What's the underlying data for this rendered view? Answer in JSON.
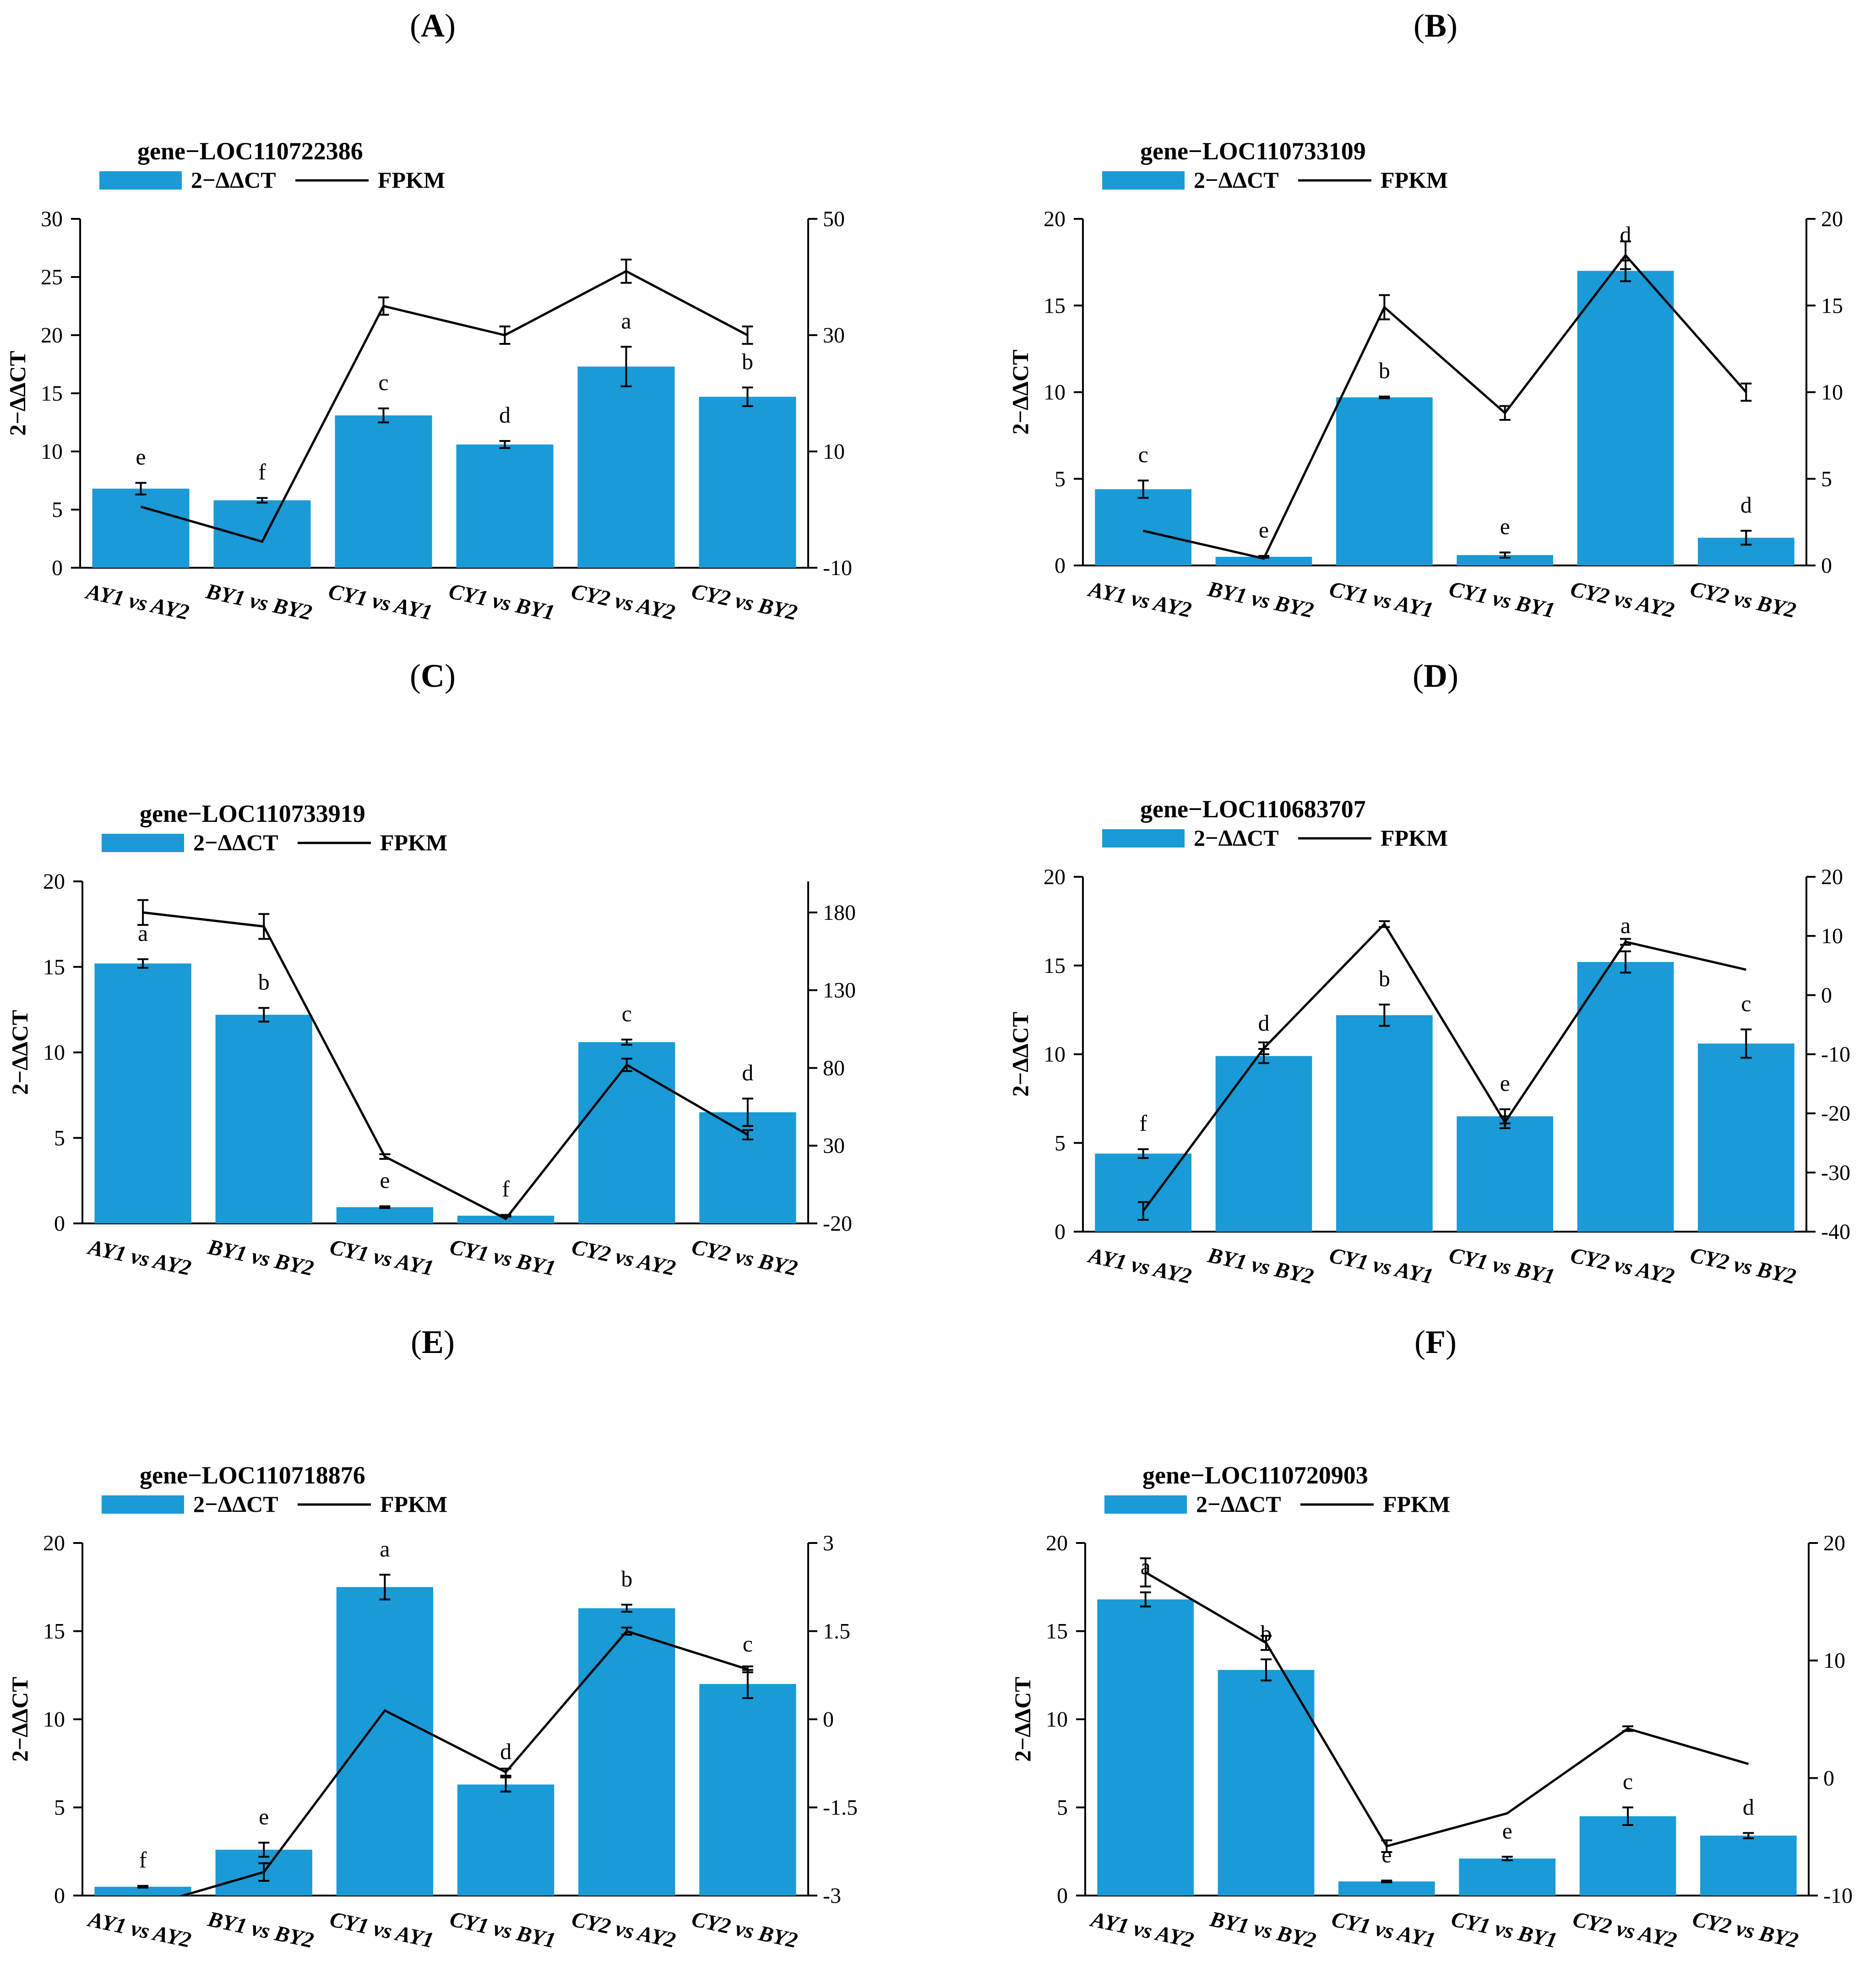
{
  "chart_data": [
    {
      "panel": "A",
      "type": "bar",
      "title": "gene−LOC110722386",
      "legend": [
        "2−ΔΔCT",
        "FPKM"
      ],
      "ylabel": "2−ΔΔCT",
      "categories": [
        "AY1 vs AY2",
        "BY1 vs BY2",
        "CY1 vs AY1",
        "CY1 vs BY1",
        "CY2 vs AY2",
        "CY2 vs BY2"
      ],
      "ylim": [
        0,
        30
      ],
      "yticks": [
        0,
        5,
        10,
        15,
        20,
        25,
        30
      ],
      "y2lim": [
        -10,
        50
      ],
      "y2ticks": [
        -10,
        10,
        30,
        50
      ],
      "series": [
        {
          "name": "2−ΔΔCT",
          "type": "bar",
          "values": [
            6.8,
            5.8,
            13.1,
            10.6,
            17.3,
            14.7
          ],
          "errors": [
            0.5,
            0.2,
            0.6,
            0.3,
            1.7,
            0.8
          ],
          "letters": [
            "e",
            "f",
            "c",
            "d",
            "a",
            "b"
          ]
        },
        {
          "name": "FPKM",
          "type": "line",
          "values": [
            0.5,
            -5.5,
            35,
            30,
            41,
            30
          ],
          "errors": [
            0,
            0,
            1.5,
            1.5,
            2,
            1.5
          ]
        }
      ]
    },
    {
      "panel": "B",
      "type": "bar",
      "title": "gene−LOC110733109",
      "legend": [
        "2−ΔΔCT",
        "FPKM"
      ],
      "ylabel": "2−ΔΔCT",
      "categories": [
        "AY1 vs AY2",
        "BY1 vs BY2",
        "CY1 vs AY1",
        "CY1 vs BY1",
        "CY2 vs AY2",
        "CY2 vs BY2"
      ],
      "ylim": [
        0,
        20
      ],
      "yticks": [
        0,
        5,
        10,
        15,
        20
      ],
      "y2lim": [
        0,
        20
      ],
      "y2ticks": [
        0,
        5,
        10,
        15,
        20
      ],
      "series": [
        {
          "name": "2−ΔΔCT",
          "type": "bar",
          "values": [
            4.4,
            0.5,
            9.7,
            0.6,
            17,
            1.6
          ],
          "errors": [
            0.5,
            0.05,
            0.05,
            0.15,
            0.6,
            0.4
          ],
          "letters": [
            "c",
            "e",
            "b",
            "e",
            "d",
            "d"
          ]
        },
        {
          "name": "FPKM",
          "type": "line",
          "values": [
            2,
            0.4,
            14.9,
            8.8,
            17.9,
            10
          ],
          "errors": [
            0,
            0,
            0.7,
            0.4,
            0.8,
            0.5
          ]
        }
      ]
    },
    {
      "panel": "C",
      "type": "bar",
      "title": "gene−LOC110733919",
      "legend": [
        "2−ΔΔCT",
        "FPKM"
      ],
      "ylabel": "2−ΔΔCT",
      "categories": [
        "AY1 vs AY2",
        "BY1 vs BY2",
        "CY1 vs AY1",
        "CY1 vs BY1",
        "CY2 vs AY2",
        "CY2 vs BY2"
      ],
      "ylim": [
        0,
        20
      ],
      "yticks": [
        0,
        5,
        10,
        15,
        20
      ],
      "y2lim": [
        -20,
        200
      ],
      "y2ticks": [
        -20,
        30,
        80,
        130,
        180
      ],
      "series": [
        {
          "name": "2−ΔΔCT",
          "type": "bar",
          "values": [
            15.2,
            12.2,
            0.95,
            0.45,
            10.6,
            6.5
          ],
          "errors": [
            0.25,
            0.4,
            0.05,
            0.05,
            0.15,
            0.8
          ],
          "letters": [
            "a",
            "b",
            "e",
            "f",
            "c",
            "d"
          ]
        },
        {
          "name": "FPKM",
          "type": "line",
          "values": [
            180,
            171,
            23,
            -17,
            82,
            37
          ],
          "errors": [
            8,
            8,
            1.5,
            0,
            4,
            3
          ]
        }
      ]
    },
    {
      "panel": "D",
      "type": "bar",
      "title": "gene−LOC110683707",
      "legend": [
        "2−ΔΔCT",
        "FPKM"
      ],
      "ylabel": "2−ΔΔCT",
      "categories": [
        "AY1 vs AY2",
        "BY1 vs BY2",
        "CY1 vs AY1",
        "CY1 vs BY1",
        "CY2 vs AY2",
        "CY2 vs BY2"
      ],
      "ylim": [
        0,
        20
      ],
      "yticks": [
        0,
        5,
        10,
        15,
        20
      ],
      "y2lim": [
        -40,
        20
      ],
      "y2ticks": [
        -40,
        -30,
        -20,
        -10,
        0,
        10,
        20
      ],
      "series": [
        {
          "name": "2−ΔΔCT",
          "type": "bar",
          "values": [
            4.4,
            9.9,
            12.2,
            6.5,
            15.2,
            10.6
          ],
          "errors": [
            0.25,
            0.4,
            0.6,
            0.4,
            0.6,
            0.8
          ],
          "letters": [
            "f",
            "d",
            "b",
            "e",
            "a",
            "c"
          ]
        },
        {
          "name": "FPKM",
          "type": "line",
          "values": [
            -36.5,
            -9,
            12,
            -21.5,
            9,
            4.3
          ],
          "errors": [
            1.5,
            1,
            0.5,
            1,
            0.5,
            0
          ]
        }
      ]
    },
    {
      "panel": "E",
      "type": "bar",
      "title": "gene−LOC110718876",
      "legend": [
        "2−ΔΔCT",
        "FPKM"
      ],
      "ylabel": "2−ΔΔCT",
      "categories": [
        "AY1 vs AY2",
        "BY1 vs BY2",
        "CY1 vs AY1",
        "CY1 vs BY1",
        "CY2 vs AY2",
        "CY2 vs BY2"
      ],
      "ylim": [
        0,
        20
      ],
      "yticks": [
        0,
        5,
        10,
        15,
        20
      ],
      "y2lim": [
        -3,
        3
      ],
      "y2ticks": [
        -3,
        -1.5,
        0,
        1.5,
        3
      ],
      "series": [
        {
          "name": "2−ΔΔCT",
          "type": "bar",
          "values": [
            0.5,
            2.6,
            17.5,
            6.3,
            16.3,
            12
          ],
          "errors": [
            0.05,
            0.4,
            0.7,
            0.4,
            0.2,
            0.8
          ],
          "letters": [
            "f",
            "e",
            "a",
            "d",
            "b",
            "c"
          ]
        },
        {
          "name": "FPKM",
          "type": "line",
          "values": [
            -3.2,
            -2.6,
            0.15,
            -0.9,
            1.5,
            0.85
          ],
          "errors": [
            0,
            0.15,
            0,
            0.06,
            0.06,
            0.05
          ]
        }
      ]
    },
    {
      "panel": "F",
      "type": "bar",
      "title": "gene−LOC110720903",
      "legend": [
        "2−ΔΔCT",
        "FPKM"
      ],
      "ylabel": "2−ΔΔCT",
      "categories": [
        "AY1 vs AY2",
        "BY1 vs BY2",
        "CY1 vs AY1",
        "CY1 vs BY1",
        "CY2 vs AY2",
        "CY2 vs BY2"
      ],
      "ylim": [
        0,
        20
      ],
      "yticks": [
        0,
        5,
        10,
        15,
        20
      ],
      "y2lim": [
        -10,
        20
      ],
      "y2ticks": [
        -10,
        0,
        10,
        20
      ],
      "series": [
        {
          "name": "2−ΔΔCT",
          "type": "bar",
          "values": [
            16.8,
            12.8,
            0.8,
            2.1,
            4.5,
            3.4
          ],
          "errors": [
            0.4,
            0.6,
            0.05,
            0.1,
            0.5,
            0.15
          ],
          "letters": [
            "a",
            "b",
            "e",
            "e",
            "c",
            "d"
          ]
        },
        {
          "name": "FPKM",
          "type": "line",
          "values": [
            17.5,
            11.5,
            -5.8,
            -3,
            4.2,
            1.2
          ],
          "errors": [
            1.2,
            0.6,
            0.5,
            0,
            0.2,
            0
          ]
        }
      ]
    }
  ],
  "colors": {
    "bar": "#1a9ad6",
    "line": "#000000"
  }
}
